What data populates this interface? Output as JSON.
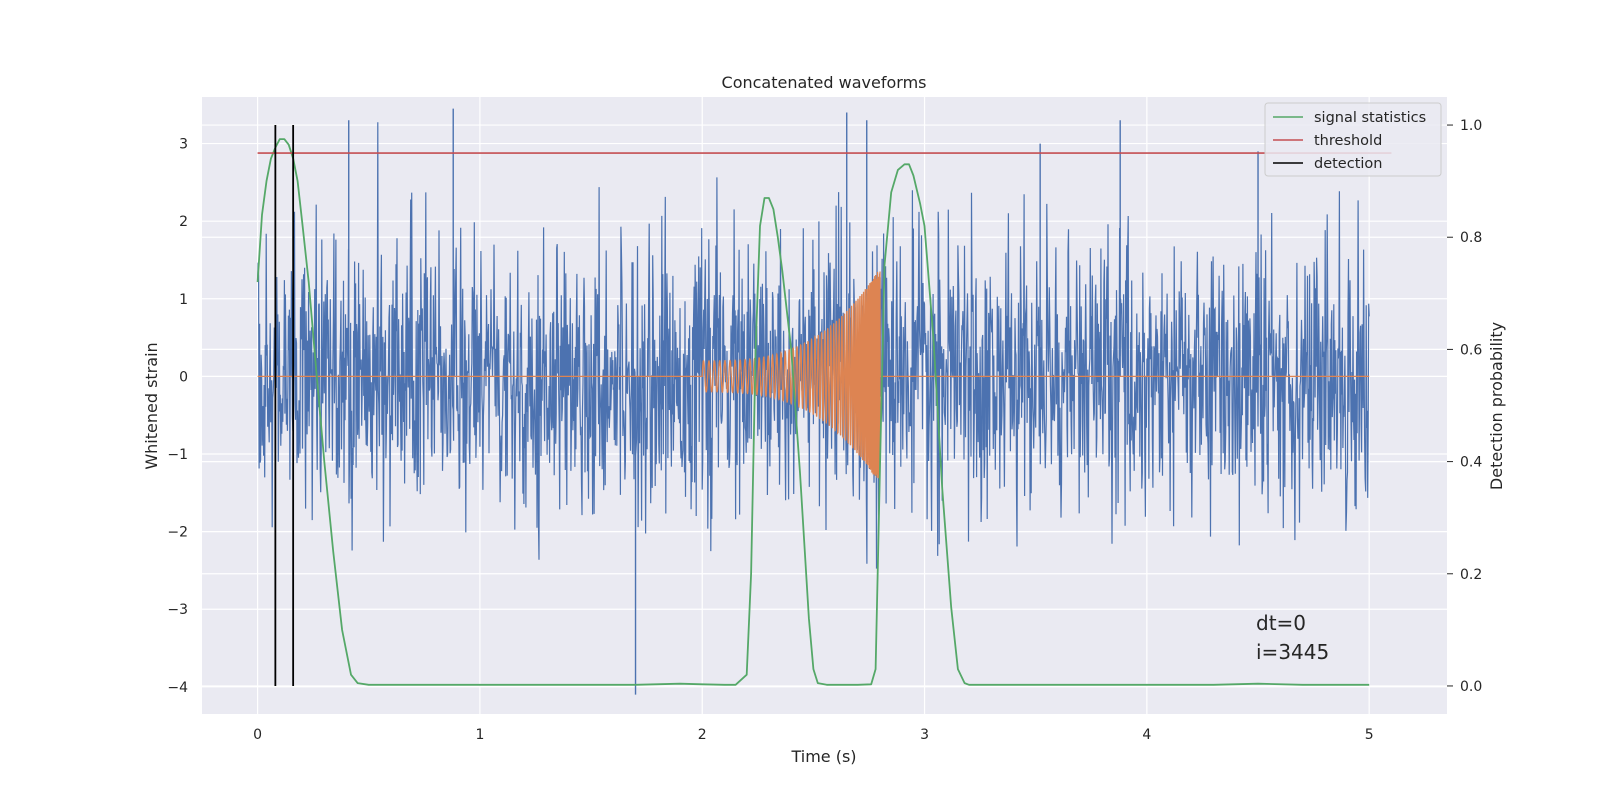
{
  "chart_data": {
    "type": "line",
    "title": "Concatenated waveforms",
    "xlabel": "Time (s)",
    "ylabel_left": "Whitened strain",
    "ylabel_right": "Detection probability",
    "xlim": [
      -0.25,
      5.35
    ],
    "ylim_left": [
      -4.35,
      3.6
    ],
    "ylim_right": [
      -0.05,
      1.05
    ],
    "x_ticks": [
      0,
      1,
      2,
      3,
      4,
      5
    ],
    "y_ticks_left": [
      -4,
      -3,
      -2,
      -1,
      0,
      1,
      2,
      3
    ],
    "y_ticks_right": [
      0.0,
      0.2,
      0.4,
      0.6,
      0.8,
      1.0
    ],
    "x_tick_labels": [
      "0",
      "1",
      "2",
      "3",
      "4",
      "5"
    ],
    "y_tick_labels_left": [
      "−4",
      "−3",
      "−2",
      "−1",
      "0",
      "1",
      "2",
      "3"
    ],
    "y_tick_labels_right": [
      "0.0",
      "0.2",
      "0.4",
      "0.6",
      "0.8",
      "1.0"
    ],
    "grid": true,
    "background": "#eaeaf2",
    "legend_position": "top-right",
    "series": [
      {
        "name": "signal statistics",
        "axis": "right",
        "color": "#55a868",
        "x": [
          0.0,
          0.02,
          0.04,
          0.06,
          0.08,
          0.1,
          0.12,
          0.14,
          0.16,
          0.18,
          0.2,
          0.23,
          0.26,
          0.3,
          0.34,
          0.38,
          0.42,
          0.45,
          0.5,
          1.0,
          1.5,
          1.7,
          1.9,
          2.0,
          2.1,
          2.15,
          2.2,
          2.22,
          2.24,
          2.26,
          2.28,
          2.3,
          2.32,
          2.34,
          2.36,
          2.4,
          2.44,
          2.48,
          2.5,
          2.52,
          2.56,
          2.6,
          2.7,
          2.76,
          2.78,
          2.8,
          2.82,
          2.85,
          2.88,
          2.91,
          2.93,
          2.95,
          2.98,
          3.0,
          3.04,
          3.08,
          3.12,
          3.15,
          3.18,
          3.2,
          3.5,
          4.0,
          4.3,
          4.5,
          4.7,
          5.0
        ],
        "y": [
          0.72,
          0.84,
          0.9,
          0.94,
          0.96,
          0.975,
          0.975,
          0.965,
          0.94,
          0.9,
          0.83,
          0.72,
          0.58,
          0.4,
          0.24,
          0.1,
          0.02,
          0.005,
          0.002,
          0.002,
          0.002,
          0.002,
          0.004,
          0.003,
          0.002,
          0.002,
          0.02,
          0.2,
          0.6,
          0.82,
          0.87,
          0.87,
          0.85,
          0.8,
          0.74,
          0.6,
          0.38,
          0.12,
          0.03,
          0.005,
          0.002,
          0.002,
          0.002,
          0.003,
          0.03,
          0.4,
          0.75,
          0.88,
          0.92,
          0.93,
          0.93,
          0.91,
          0.86,
          0.82,
          0.62,
          0.35,
          0.14,
          0.03,
          0.005,
          0.002,
          0.002,
          0.002,
          0.002,
          0.004,
          0.002,
          0.002
        ]
      },
      {
        "name": "threshold",
        "axis": "right",
        "color": "#c44e52",
        "x": [
          0.0,
          5.1
        ],
        "y": [
          0.95,
          0.95
        ]
      },
      {
        "name": "detection",
        "axis": "right",
        "color": "#000000",
        "x": [
          0.08,
          0.16
        ],
        "y": [
          1.0,
          1.0
        ]
      },
      {
        "name": "",
        "axis": "left",
        "color": "#4c72b0",
        "x_range": [
          0.0,
          5.0
        ],
        "amplitude_typical": 1.0,
        "y_extremes": [
          -4.1,
          3.45
        ]
      },
      {
        "name": "",
        "axis": "left",
        "color": "#dd8452",
        "x_range": [
          0.0,
          5.0
        ],
        "chirp_start": 2.0,
        "chirp_end": 2.8,
        "amplitude_start": 0.2,
        "amplitude_peak": 1.4
      }
    ],
    "annotations": [
      "dt=0",
      "i=3445"
    ]
  }
}
